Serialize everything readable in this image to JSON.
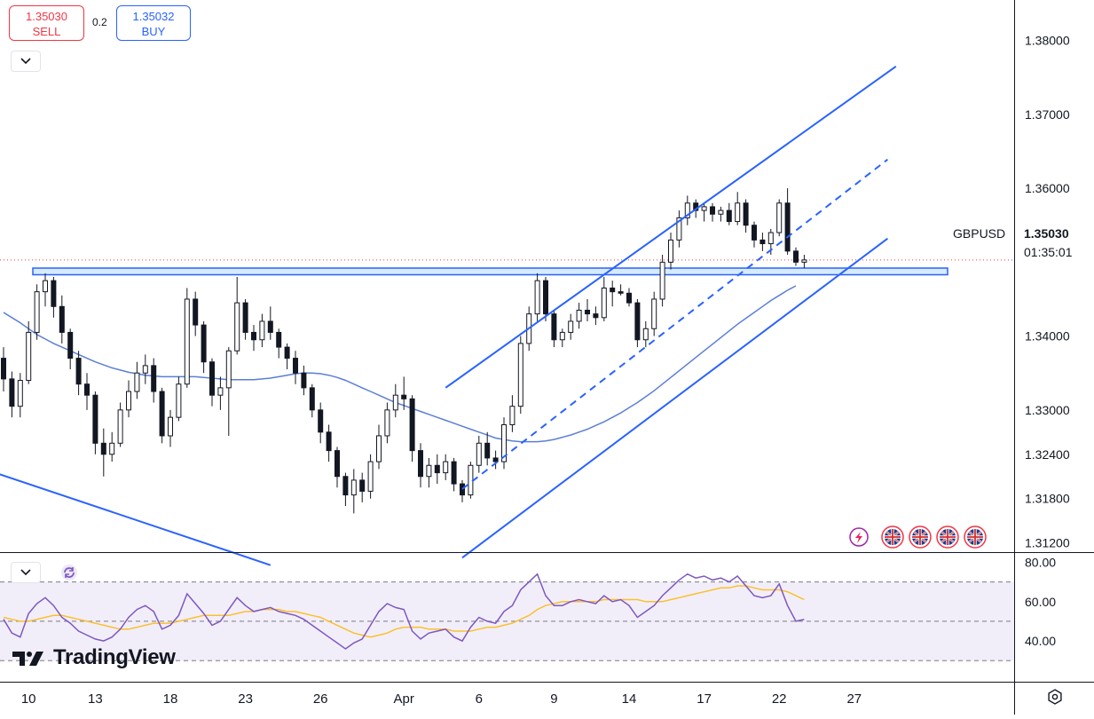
{
  "trade": {
    "sell_price": "1.35030",
    "sell_label": "SELL",
    "buy_price": "1.35032",
    "buy_label": "BUY",
    "spread": "0.2"
  },
  "symbol": "GBPUSD",
  "current_price": "1.35030",
  "countdown": "01:35:01",
  "brand": "TradingView",
  "icons": {
    "dropdown": "chevron-down-icon",
    "refresh": "refresh-icon",
    "lightning": "lightning-icon",
    "flag": "uk-flag-icon",
    "settings": "settings-icon"
  },
  "colors": {
    "up": "#ffffff",
    "down": "#131722",
    "channel": "#2962ff",
    "ma": "#5b7fd6",
    "rsi": "#7e57c2",
    "rsi_ma": "#fbc02d",
    "rsi_band": "#ede7f6",
    "price_line": "#f23645",
    "zone": "#bbdefb"
  },
  "chart_data": [
    {
      "type": "candlestick",
      "y_ticks": [
        "1.38000",
        "1.37000",
        "1.36000",
        "1.34000",
        "1.33000",
        "1.32400",
        "1.31800",
        "1.31200"
      ],
      "x_ticks": [
        "10",
        "13",
        "18",
        "23",
        "26",
        "Apr",
        "6",
        "9",
        "14",
        "17",
        "22",
        "27"
      ],
      "x_tick_index": [
        3,
        11,
        20,
        29,
        38,
        48,
        57,
        66,
        75,
        84,
        93,
        102
      ],
      "ylim": [
        1.311,
        1.385
      ],
      "candles": [
        [
          1.337,
          1.3385,
          1.3325,
          1.3342
        ],
        [
          1.3342,
          1.3352,
          1.329,
          1.3305
        ],
        [
          1.3305,
          1.335,
          1.329,
          1.334
        ],
        [
          1.334,
          1.342,
          1.3335,
          1.3405
        ],
        [
          1.3405,
          1.347,
          1.3395,
          1.346
        ],
        [
          1.346,
          1.3485,
          1.344,
          1.3475
        ],
        [
          1.3475,
          1.348,
          1.3425,
          1.344
        ],
        [
          1.344,
          1.3455,
          1.339,
          1.3405
        ],
        [
          1.3405,
          1.341,
          1.3355,
          1.337
        ],
        [
          1.337,
          1.338,
          1.332,
          1.3335
        ],
        [
          1.3335,
          1.335,
          1.33,
          1.332
        ],
        [
          1.332,
          1.3325,
          1.324,
          1.3255
        ],
        [
          1.3255,
          1.3275,
          1.321,
          1.324
        ],
        [
          1.324,
          1.327,
          1.323,
          1.3255
        ],
        [
          1.3255,
          1.331,
          1.325,
          1.33
        ],
        [
          1.33,
          1.334,
          1.329,
          1.3325
        ],
        [
          1.3325,
          1.3365,
          1.3315,
          1.335
        ],
        [
          1.335,
          1.3375,
          1.3335,
          1.336
        ],
        [
          1.336,
          1.337,
          1.331,
          1.3325
        ],
        [
          1.3325,
          1.333,
          1.3255,
          1.3265
        ],
        [
          1.3265,
          1.33,
          1.325,
          1.329
        ],
        [
          1.329,
          1.3345,
          1.3285,
          1.3335
        ],
        [
          1.3335,
          1.3465,
          1.333,
          1.345
        ],
        [
          1.345,
          1.346,
          1.34,
          1.3415
        ],
        [
          1.3415,
          1.342,
          1.335,
          1.3365
        ],
        [
          1.3365,
          1.337,
          1.3305,
          1.332
        ],
        [
          1.332,
          1.3345,
          1.33,
          1.333
        ],
        [
          1.333,
          1.3385,
          1.3265,
          1.338
        ],
        [
          1.338,
          1.348,
          1.3375,
          1.3445
        ],
        [
          1.3445,
          1.345,
          1.3395,
          1.3405
        ],
        [
          1.3405,
          1.3415,
          1.338,
          1.3395
        ],
        [
          1.3395,
          1.343,
          1.3385,
          1.342
        ],
        [
          1.342,
          1.344,
          1.3395,
          1.3405
        ],
        [
          1.3405,
          1.341,
          1.337,
          1.3385
        ],
        [
          1.3385,
          1.339,
          1.3355,
          1.337
        ],
        [
          1.337,
          1.338,
          1.3335,
          1.335
        ],
        [
          1.335,
          1.336,
          1.332,
          1.333
        ],
        [
          1.333,
          1.3335,
          1.329,
          1.33
        ],
        [
          1.33,
          1.331,
          1.3255,
          1.327
        ],
        [
          1.327,
          1.328,
          1.323,
          1.3245
        ],
        [
          1.3245,
          1.325,
          1.3195,
          1.321
        ],
        [
          1.321,
          1.3215,
          1.317,
          1.3185
        ],
        [
          1.3185,
          1.322,
          1.316,
          1.3205
        ],
        [
          1.3205,
          1.3215,
          1.3175,
          1.319
        ],
        [
          1.319,
          1.324,
          1.318,
          1.323
        ],
        [
          1.323,
          1.328,
          1.322,
          1.3265
        ],
        [
          1.3265,
          1.331,
          1.3255,
          1.33
        ],
        [
          1.33,
          1.3335,
          1.329,
          1.332
        ],
        [
          1.332,
          1.3345,
          1.33,
          1.3315
        ],
        [
          1.3315,
          1.332,
          1.323,
          1.3245
        ],
        [
          1.3245,
          1.3255,
          1.3195,
          1.321
        ],
        [
          1.321,
          1.3235,
          1.3195,
          1.3225
        ],
        [
          1.3225,
          1.324,
          1.32,
          1.3215
        ],
        [
          1.3215,
          1.324,
          1.3205,
          1.323
        ],
        [
          1.323,
          1.3235,
          1.319,
          1.32
        ],
        [
          1.32,
          1.3205,
          1.3175,
          1.3185
        ],
        [
          1.3185,
          1.323,
          1.318,
          1.3225
        ],
        [
          1.3225,
          1.3265,
          1.3215,
          1.3255
        ],
        [
          1.3255,
          1.327,
          1.3225,
          1.3235
        ],
        [
          1.3235,
          1.3245,
          1.322,
          1.323
        ],
        [
          1.323,
          1.329,
          1.322,
          1.328
        ],
        [
          1.328,
          1.332,
          1.327,
          1.3305
        ],
        [
          1.3305,
          1.34,
          1.3295,
          1.339
        ],
        [
          1.339,
          1.344,
          1.338,
          1.343
        ],
        [
          1.343,
          1.3485,
          1.342,
          1.3475
        ],
        [
          1.3475,
          1.348,
          1.342,
          1.343
        ],
        [
          1.343,
          1.3435,
          1.3385,
          1.3395
        ],
        [
          1.3395,
          1.341,
          1.3385,
          1.3405
        ],
        [
          1.3405,
          1.343,
          1.3395,
          1.342
        ],
        [
          1.342,
          1.3445,
          1.341,
          1.3435
        ],
        [
          1.3435,
          1.345,
          1.342,
          1.343
        ],
        [
          1.343,
          1.344,
          1.3415,
          1.3425
        ],
        [
          1.3425,
          1.348,
          1.342,
          1.3465
        ],
        [
          1.3465,
          1.3475,
          1.344,
          1.346
        ],
        [
          1.346,
          1.347,
          1.3455,
          1.3458
        ],
        [
          1.3458,
          1.3465,
          1.344,
          1.3445
        ],
        [
          1.3445,
          1.345,
          1.3385,
          1.3395
        ],
        [
          1.3395,
          1.342,
          1.3385,
          1.341
        ],
        [
          1.341,
          1.346,
          1.34,
          1.345
        ],
        [
          1.345,
          1.351,
          1.344,
          1.35
        ],
        [
          1.35,
          1.354,
          1.349,
          1.353
        ],
        [
          1.353,
          1.357,
          1.352,
          1.356
        ],
        [
          1.356,
          1.359,
          1.355,
          1.358
        ],
        [
          1.358,
          1.3585,
          1.356,
          1.357
        ],
        [
          1.357,
          1.358,
          1.3555,
          1.3575
        ],
        [
          1.3575,
          1.358,
          1.3555,
          1.3565
        ],
        [
          1.3565,
          1.3575,
          1.3555,
          1.357
        ],
        [
          1.357,
          1.358,
          1.355,
          1.3555
        ],
        [
          1.3555,
          1.3595,
          1.355,
          1.358
        ],
        [
          1.358,
          1.3585,
          1.354,
          1.355
        ],
        [
          1.355,
          1.3555,
          1.352,
          1.353
        ],
        [
          1.353,
          1.354,
          1.3515,
          1.3525
        ],
        [
          1.3525,
          1.3545,
          1.351,
          1.354
        ],
        [
          1.354,
          1.3585,
          1.3535,
          1.358
        ],
        [
          1.358,
          1.36,
          1.351,
          1.3515
        ],
        [
          1.3515,
          1.352,
          1.3495,
          1.35
        ],
        [
          1.35,
          1.351,
          1.3492,
          1.3503
        ]
      ],
      "ma": [
        1.3432,
        1.3425,
        1.3418,
        1.341,
        1.3402,
        1.3396,
        1.339,
        1.3385,
        1.338,
        1.3375,
        1.337,
        1.3365,
        1.3361,
        1.3357,
        1.3354,
        1.3351,
        1.3349,
        1.3347,
        1.3346,
        1.3345,
        1.3345,
        1.3345,
        1.3345,
        1.3345,
        1.3344,
        1.3343,
        1.3342,
        1.3341,
        1.3341,
        1.3341,
        1.3341,
        1.3342,
        1.3343,
        1.3345,
        1.3347,
        1.3349,
        1.335,
        1.335,
        1.3349,
        1.3347,
        1.3344,
        1.334,
        1.3335,
        1.333,
        1.3325,
        1.332,
        1.3315,
        1.331,
        1.3306,
        1.3302,
        1.3298,
        1.3294,
        1.329,
        1.3286,
        1.3282,
        1.3278,
        1.3274,
        1.327,
        1.3266,
        1.3262,
        1.326,
        1.3258,
        1.3257,
        1.3257,
        1.3257,
        1.3258,
        1.326,
        1.3263,
        1.3266,
        1.327,
        1.3274,
        1.3279,
        1.3284,
        1.329,
        1.3296,
        1.3303,
        1.331,
        1.3318,
        1.3326,
        1.3335,
        1.3344,
        1.3353,
        1.3362,
        1.3371,
        1.338,
        1.3389,
        1.3398,
        1.3407,
        1.3416,
        1.3424,
        1.3432,
        1.344,
        1.3448,
        1.3455,
        1.3462,
        1.3468
      ],
      "channel_upper": [
        [
          53,
          1.333
        ],
        [
          107,
          1.3765
        ]
      ],
      "channel_mid": [
        [
          55,
          1.3193
        ],
        [
          106,
          1.3639
        ]
      ],
      "channel_lower": [
        [
          55,
          1.31
        ],
        [
          106,
          1.3532
        ]
      ],
      "descending_line": [
        [
          -1,
          1.3215
        ],
        [
          32,
          1.309
        ]
      ],
      "zone": [
        1.3483,
        1.3492
      ]
    },
    {
      "type": "line",
      "y_ticks": [
        "80.00",
        "60.00",
        "40.00"
      ],
      "ylim": [
        22,
        82
      ],
      "levels": [
        70,
        50,
        30
      ],
      "rsi": [
        51,
        44,
        42,
        54,
        59,
        62,
        58,
        52,
        49,
        45,
        43,
        41,
        40,
        42,
        46,
        52,
        56,
        58,
        55,
        46,
        48,
        53,
        64,
        59,
        54,
        48,
        50,
        56,
        62,
        58,
        55,
        56,
        57,
        55,
        54,
        53,
        51,
        48,
        45,
        42,
        39,
        36,
        39,
        41,
        48,
        55,
        59,
        57,
        56,
        45,
        41,
        44,
        45,
        46,
        42,
        40,
        47,
        52,
        50,
        49,
        55,
        58,
        66,
        70,
        74,
        63,
        58,
        58,
        60,
        61,
        60,
        59,
        63,
        60,
        61,
        58,
        52,
        55,
        58,
        63,
        67,
        71,
        74,
        72,
        73,
        71,
        72,
        70,
        73,
        68,
        63,
        62,
        63,
        69,
        58,
        50,
        51
      ],
      "rsi_ma": [
        52,
        51,
        50,
        50,
        51,
        52,
        53,
        53,
        52,
        51,
        50,
        49,
        48,
        47,
        46,
        46,
        47,
        48,
        49,
        49,
        49,
        50,
        51,
        52,
        53,
        53,
        53,
        53,
        54,
        55,
        55,
        56,
        56,
        56,
        55,
        55,
        54,
        53,
        52,
        50,
        48,
        46,
        44,
        43,
        42,
        43,
        44,
        46,
        47,
        47,
        47,
        46,
        46,
        46,
        45,
        45,
        45,
        46,
        47,
        47,
        48,
        49,
        51,
        53,
        56,
        58,
        59,
        60,
        60,
        60,
        60,
        60,
        61,
        61,
        61,
        61,
        61,
        60,
        60,
        60,
        61,
        62,
        63,
        64,
        65,
        66,
        67,
        67,
        68,
        68,
        67,
        66,
        66,
        66,
        65,
        63,
        61
      ]
    }
  ]
}
